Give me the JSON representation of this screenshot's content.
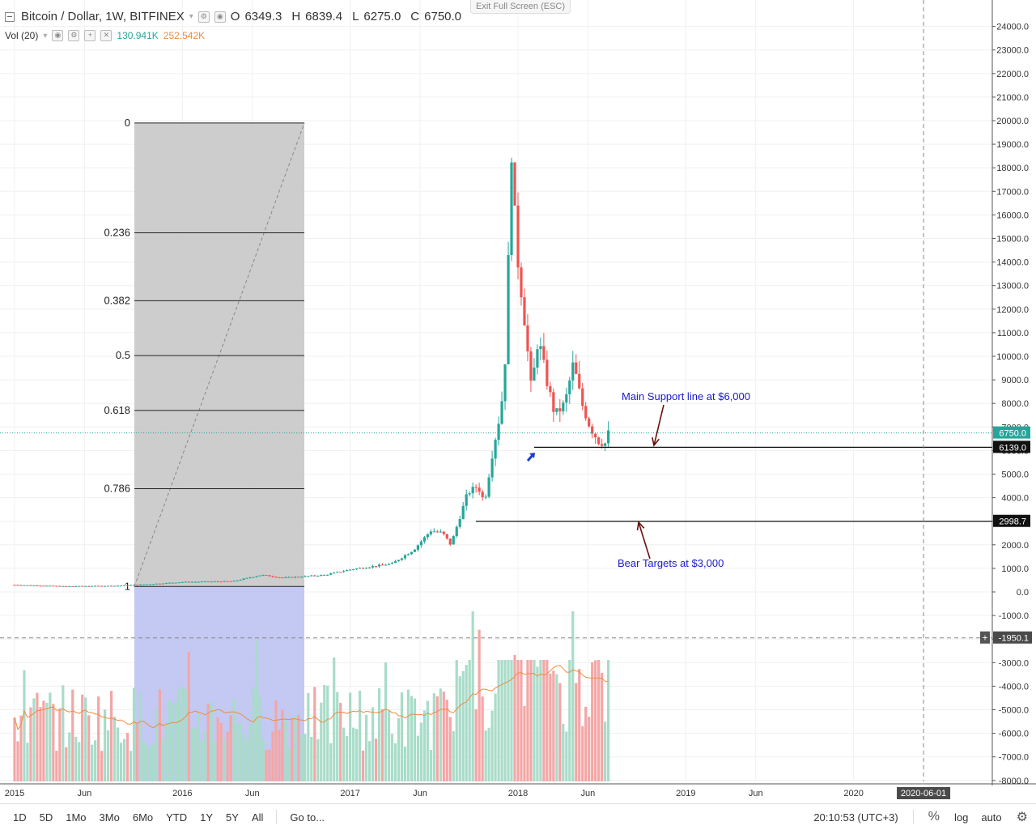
{
  "header": {
    "symbol_title": "Bitcoin / Dollar, 1W, BITFINEX",
    "ohlc": [
      {
        "label": "O",
        "value": "6349.3"
      },
      {
        "label": "H",
        "value": "6839.4"
      },
      {
        "label": "L",
        "value": "6275.0"
      },
      {
        "label": "C",
        "value": "6750.0"
      }
    ],
    "volume_label": "Vol (20)",
    "volume_value": "130.941K",
    "volume_ma_value": "252.542K",
    "exit_fullscreen": "Exit Full Screen (ESC)"
  },
  "colors": {
    "up": "#26a69a",
    "down": "#ef5350",
    "up_vol": "#a8dcc9",
    "down_vol": "#f4a6a6",
    "vol_ma": "#ef8c40",
    "annotation_text": "#1a1acc",
    "arrow_dark": "#6b0f0f",
    "fib_zone": "#c8c8c8",
    "fib_zone_vol": "#b8bff0"
  },
  "chart_data": {
    "type": "candlestick",
    "x": [
      "2015-01",
      "2015-06",
      "2016-01",
      "2016-06",
      "2017-01",
      "2017-06",
      "2018-01",
      "2018-06",
      "2019-01",
      "2019-06",
      "2020-01"
    ],
    "xlabel": "",
    "ylabel": "",
    "ylim": [
      -8000,
      24500
    ],
    "price_axis_ticks": [
      24000,
      23000,
      22000,
      21000,
      20000,
      19000,
      18000,
      17000,
      16000,
      15000,
      14000,
      13000,
      12000,
      11000,
      10000,
      9000,
      8000,
      7000,
      6000,
      5000,
      4000,
      3000,
      2000,
      1000,
      0,
      -1000,
      -2000,
      -3000,
      -4000,
      -5000,
      -6000,
      -7000,
      -8000
    ],
    "price_axis_labels": [
      "24000.0",
      "23000.0",
      "22000.0",
      "21000.0",
      "20000.0",
      "19000.0",
      "18000.0",
      "17000.0",
      "16000.0",
      "15000.0",
      "14000.0",
      "13000.0",
      "12000.0",
      "11000.0",
      "10000.0",
      "9000.0",
      "8000.0",
      "7000.0",
      "6000.0",
      "5000.0",
      "4000.0",
      "3000.0",
      "2000.0",
      "1000.0",
      "0.0",
      "-1000.0",
      "-2000.0",
      "-3000.0",
      "-4000.0",
      "-5000.0",
      "-6000.0",
      "-7000.0",
      "-8000.0"
    ],
    "time_axis_labels": [
      "2015",
      "Jun",
      "2016",
      "Jun",
      "2017",
      "Jun",
      "2018",
      "Jun",
      "2019",
      "Jun",
      "2020"
    ],
    "crosshair_time_label": "2020-06-01",
    "crosshair_price_label": "-1950.1",
    "crosshair_price": -1950.1,
    "price_markers": [
      {
        "label": "6750.0",
        "value": 6750.0,
        "kind": "last"
      },
      {
        "label": "6139.0",
        "value": 6139.0,
        "kind": "line"
      },
      {
        "label": "2998.7",
        "value": 2998.7,
        "kind": "line"
      }
    ],
    "fib_levels": [
      {
        "label": "0",
        "price": 19900
      },
      {
        "label": "0.236",
        "price": 15240
      },
      {
        "label": "0.382",
        "price": 12360
      },
      {
        "label": "0.5",
        "price": 10030
      },
      {
        "label": "0.618",
        "price": 7700
      },
      {
        "label": "0.786",
        "price": 4380
      },
      {
        "label": "1",
        "price": 230
      }
    ],
    "annotations": [
      {
        "text": "Main Support line at $6,000"
      },
      {
        "text": "Bear Targets at $3,000"
      }
    ],
    "support_line": 6139.0,
    "bear_target_line": 2998.7,
    "volume_ma_series": "Vol (20)"
  },
  "toolbar": {
    "ranges": [
      "1D",
      "5D",
      "1Mo",
      "3Mo",
      "6Mo",
      "YTD",
      "1Y",
      "5Y",
      "All"
    ],
    "goto": "Go to...",
    "time": "20:10:53 (UTC+3)",
    "percent": "%",
    "log": "log",
    "auto": "auto"
  }
}
